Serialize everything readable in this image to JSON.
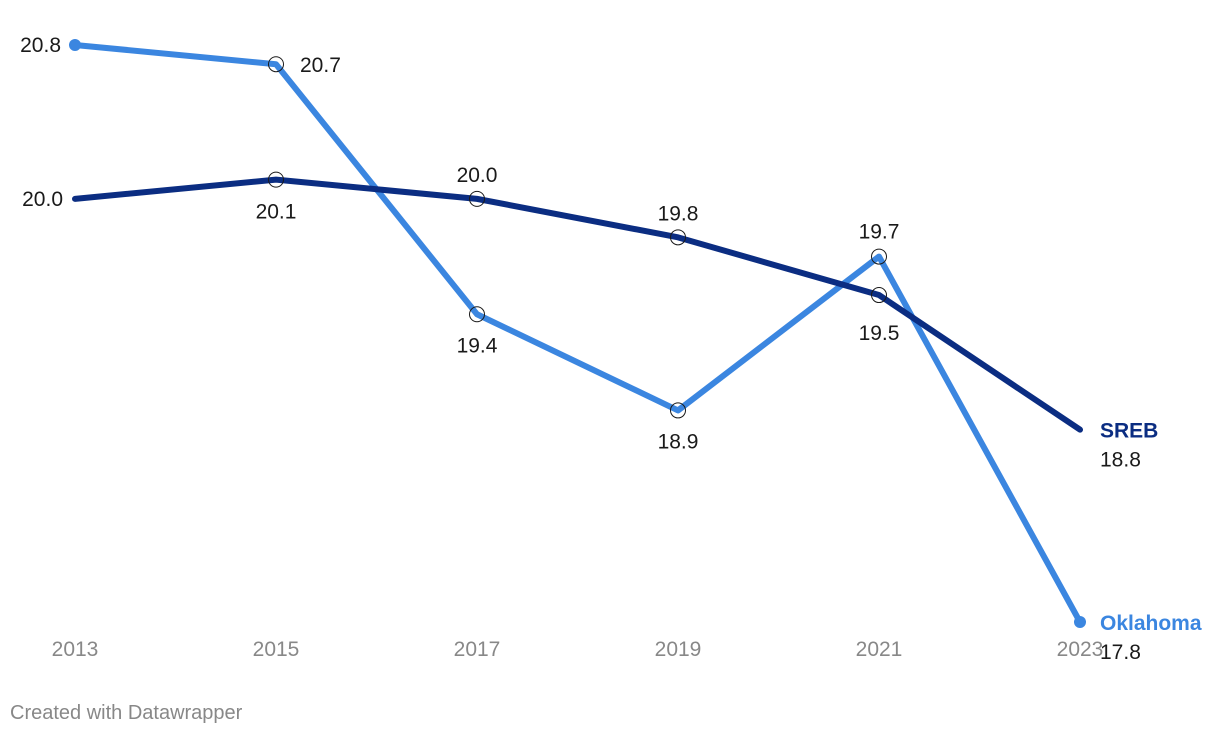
{
  "chart_data": {
    "type": "line",
    "title": "",
    "xlabel": "",
    "ylabel": "",
    "x": [
      "2013",
      "2015",
      "2017",
      "2019",
      "2021",
      "2023"
    ],
    "ylim": [
      17.8,
      20.8
    ],
    "grid": false,
    "legend": "inline labels at line ends",
    "series": [
      {
        "name": "Oklahoma",
        "color": "#3b86e0",
        "values": [
          20.8,
          20.7,
          19.4,
          18.9,
          19.7,
          17.8
        ],
        "labels": [
          "20.8",
          "20.7",
          "19.4",
          "18.9",
          "19.7",
          "17.8"
        ]
      },
      {
        "name": "SREB",
        "color": "#0b2d82",
        "values": [
          20.0,
          20.1,
          20.0,
          19.8,
          19.5,
          18.8
        ],
        "labels": [
          "20.0",
          "20.1",
          "20.0",
          "19.8",
          "19.5",
          "18.8"
        ]
      }
    ]
  },
  "footer": {
    "credit": "Created with Datawrapper"
  }
}
